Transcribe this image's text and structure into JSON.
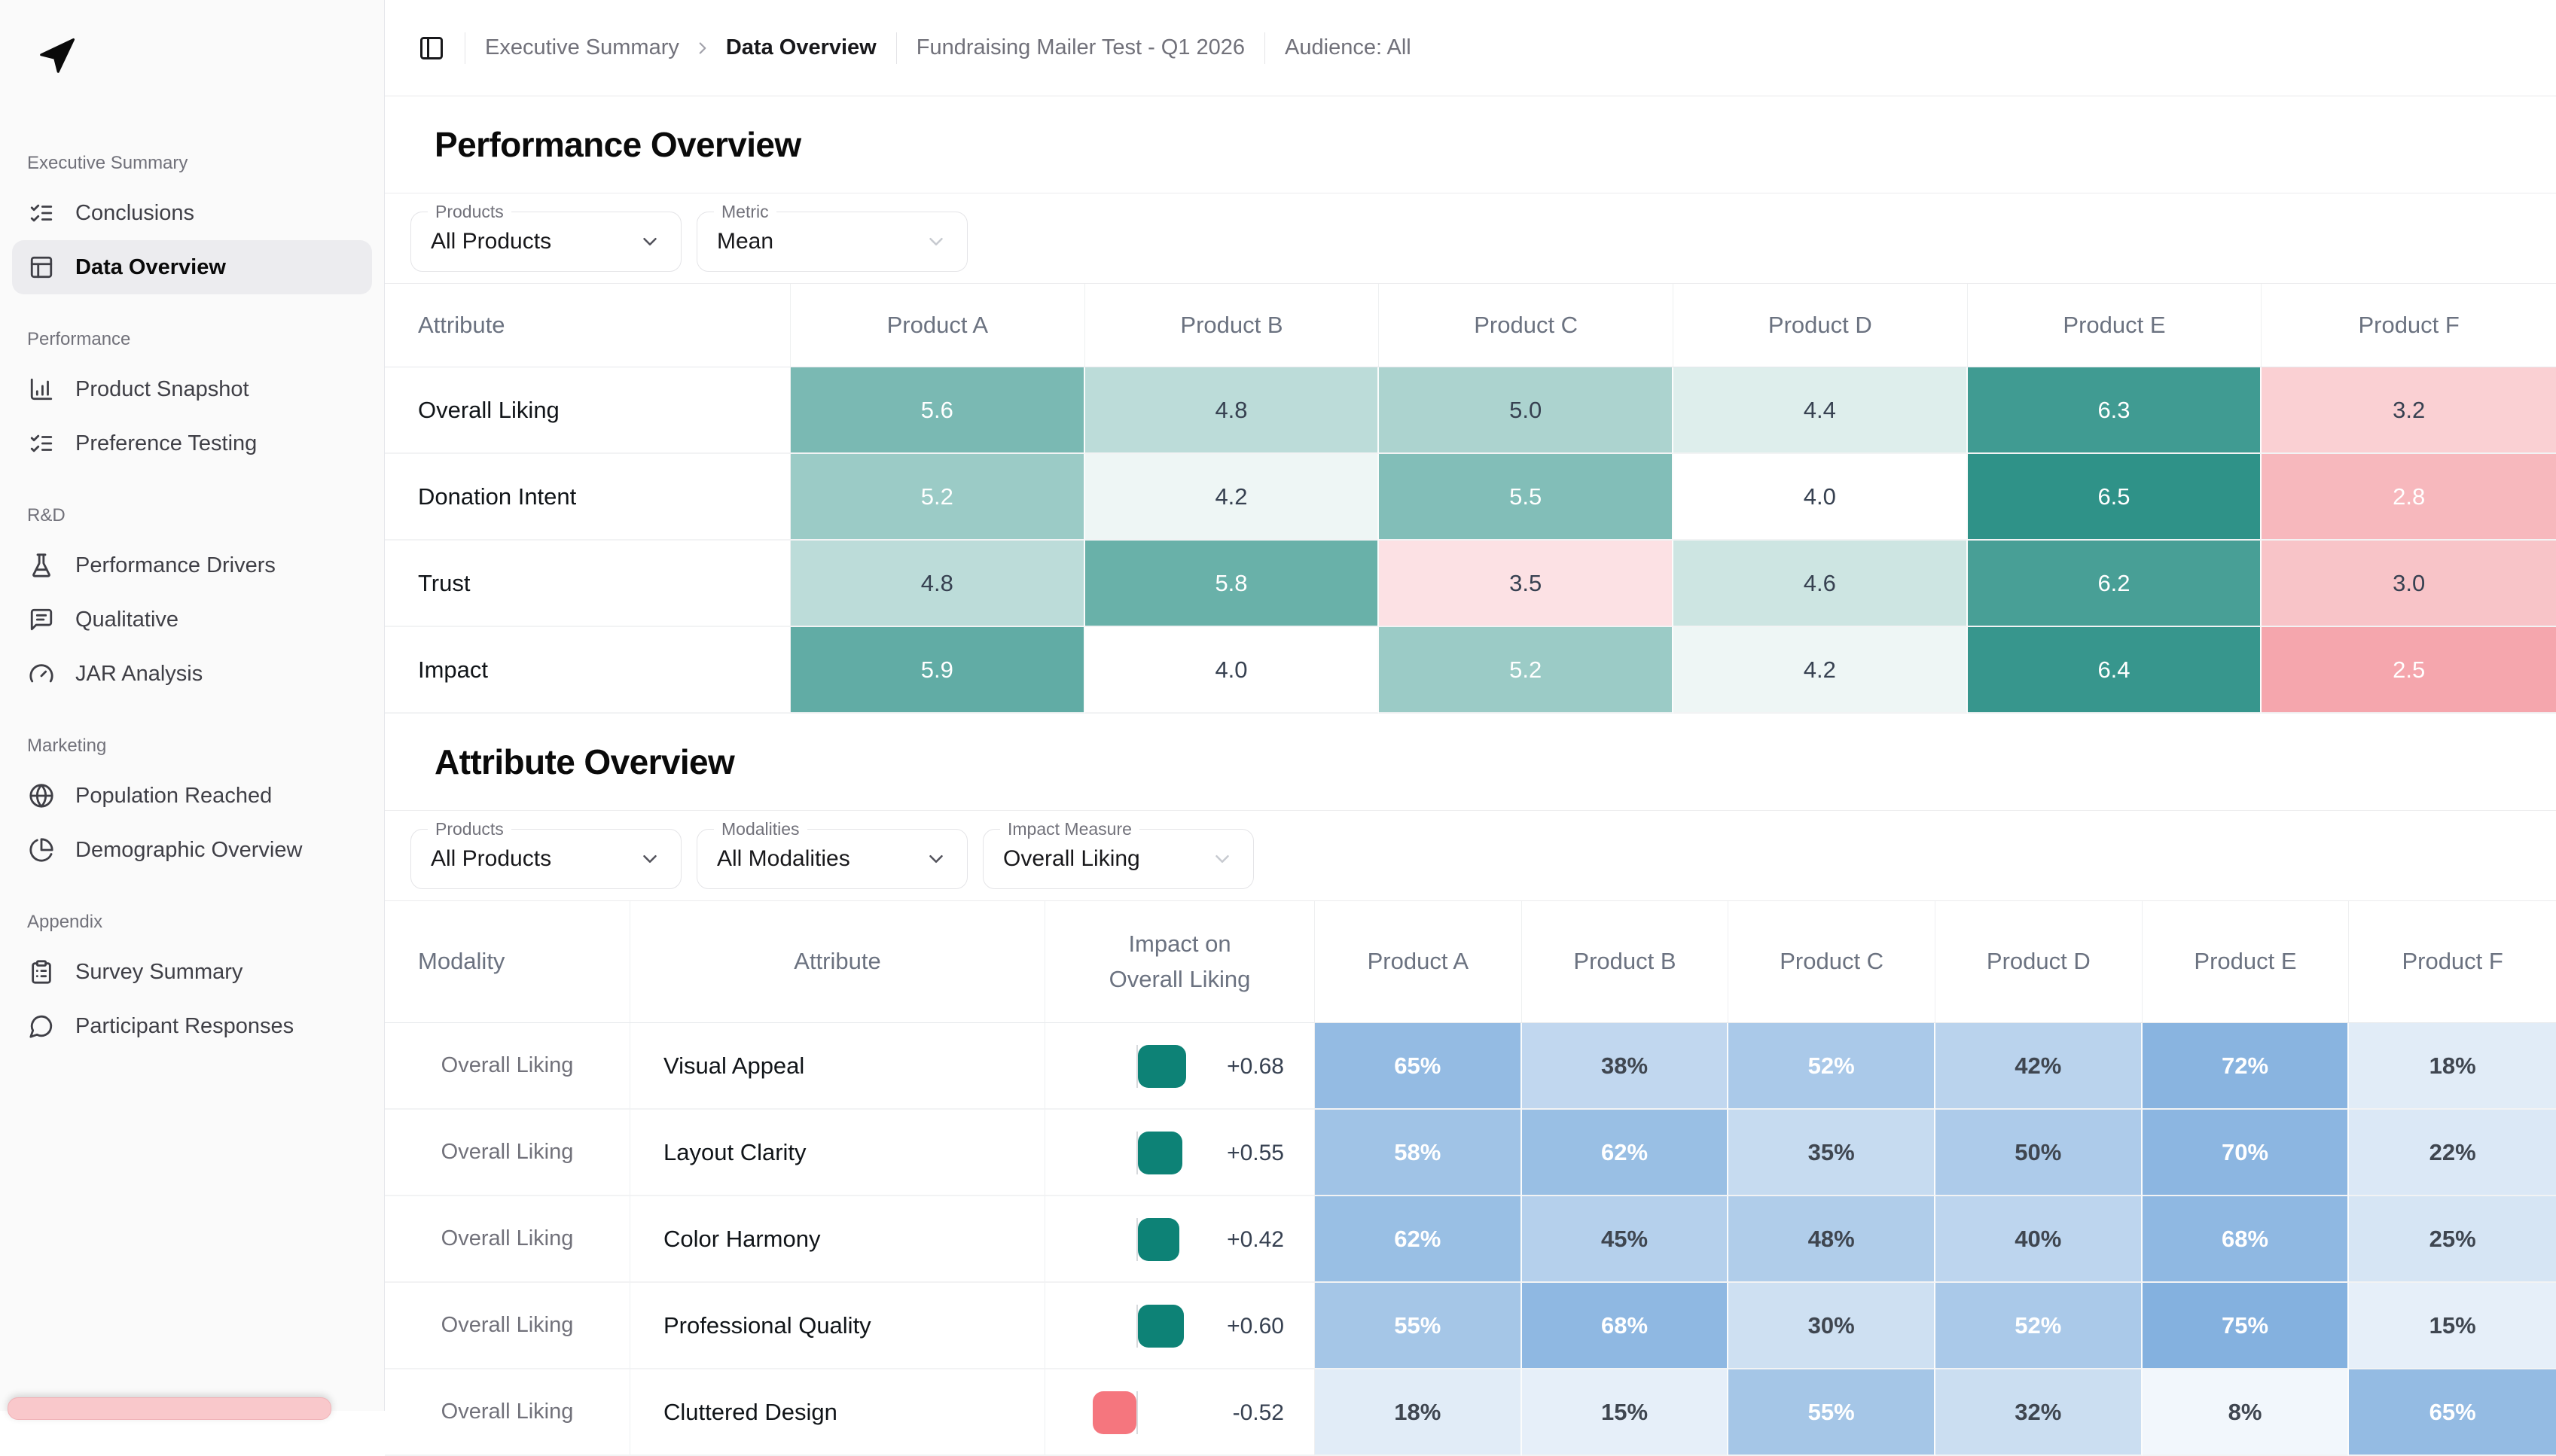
{
  "topbar": {
    "breadcrumb_parent": "Executive Summary",
    "breadcrumb_current": "Data Overview",
    "project": "Fundraising Mailer Test - Q1 2026",
    "audience": "Audience: All"
  },
  "sidebar": {
    "logo_icon": "navigation-arrow-icon",
    "sections": [
      {
        "label": "Executive Summary",
        "items": [
          {
            "label": "Conclusions",
            "icon": "list-checks",
            "active": false
          },
          {
            "label": "Data Overview",
            "icon": "table",
            "active": true
          }
        ]
      },
      {
        "label": "Performance",
        "items": [
          {
            "label": "Product Snapshot",
            "icon": "bar-chart",
            "active": false
          },
          {
            "label": "Preference Testing",
            "icon": "list-checks",
            "active": false
          }
        ]
      },
      {
        "label": "R&D",
        "items": [
          {
            "label": "Performance Drivers",
            "icon": "flask",
            "active": false
          },
          {
            "label": "Qualitative",
            "icon": "message-square",
            "active": false
          },
          {
            "label": "JAR Analysis",
            "icon": "gauge",
            "active": false
          }
        ]
      },
      {
        "label": "Marketing",
        "items": [
          {
            "label": "Population Reached",
            "icon": "globe",
            "active": false
          },
          {
            "label": "Demographic Overview",
            "icon": "pie-chart",
            "active": false
          }
        ]
      },
      {
        "label": "Appendix",
        "items": [
          {
            "label": "Survey Summary",
            "icon": "clipboard-list",
            "active": false
          },
          {
            "label": "Participant Responses",
            "icon": "message-circle",
            "active": false
          }
        ]
      }
    ]
  },
  "performance_overview": {
    "title": "Performance Overview",
    "filters": {
      "products": {
        "label": "Products",
        "value": "All Products",
        "muted_chevron": false
      },
      "metric": {
        "label": "Metric",
        "value": "Mean",
        "muted_chevron": true
      }
    }
  },
  "attribute_overview": {
    "title": "Attribute Overview",
    "filters": {
      "products": {
        "label": "Products",
        "value": "All Products",
        "muted_chevron": false
      },
      "modalities": {
        "label": "Modalities",
        "value": "All Modalities",
        "muted_chevron": false
      },
      "impact_measure": {
        "label": "Impact Measure",
        "value": "Overall Liking",
        "muted_chevron": true
      }
    }
  },
  "performance_table": {
    "type": "heatmap",
    "columns": [
      "Attribute",
      "Product A",
      "Product B",
      "Product C",
      "Product D",
      "Product E",
      "Product F"
    ],
    "rows": [
      {
        "attribute": "Overall Liking",
        "values": [
          5.6,
          4.8,
          5.0,
          4.4,
          6.3,
          3.2
        ]
      },
      {
        "attribute": "Donation Intent",
        "values": [
          5.2,
          4.2,
          5.5,
          4.0,
          6.5,
          2.8
        ]
      },
      {
        "attribute": "Trust",
        "values": [
          4.8,
          5.8,
          3.5,
          4.6,
          6.2,
          3.0
        ]
      },
      {
        "attribute": "Impact",
        "values": [
          5.9,
          4.0,
          5.2,
          4.2,
          6.4,
          2.5
        ]
      }
    ]
  },
  "attribute_table": {
    "type": "heatmap",
    "columns": [
      "Modality",
      "Attribute",
      "Impact on Overall Liking",
      "Product A",
      "Product B",
      "Product C",
      "Product D",
      "Product E",
      "Product F"
    ],
    "rows": [
      {
        "modality": "Overall Liking",
        "attribute": "Visual Appeal",
        "impact": 0.68,
        "values": [
          65,
          38,
          52,
          42,
          72,
          18
        ]
      },
      {
        "modality": "Overall Liking",
        "attribute": "Layout Clarity",
        "impact": 0.55,
        "values": [
          58,
          62,
          35,
          50,
          70,
          22
        ]
      },
      {
        "modality": "Overall Liking",
        "attribute": "Color Harmony",
        "impact": 0.42,
        "values": [
          62,
          45,
          48,
          40,
          68,
          25
        ]
      },
      {
        "modality": "Overall Liking",
        "attribute": "Professional Quality",
        "impact": 0.6,
        "values": [
          55,
          68,
          30,
          52,
          75,
          15
        ]
      },
      {
        "modality": "Overall Liking",
        "attribute": "Cluttered Design",
        "impact": -0.52,
        "values": [
          18,
          15,
          55,
          32,
          8,
          65
        ]
      }
    ]
  },
  "colors": {
    "teal_strong": "#2f9288",
    "pink_strong": "#f5a6ad",
    "blue_strong": "#5b97d4",
    "impact_positive": "#0d8276",
    "impact_negative": "#f5767e",
    "active_item_bg": "#ececef",
    "toast_pink": "#f9c8cb"
  },
  "scales": {
    "mean": {
      "min": 2.5,
      "mid": 4.0,
      "max": 6.5,
      "white_text_above": 5.2,
      "white_text_below": 2.8
    },
    "percent": {
      "min": 0,
      "max": 100,
      "white_text_at": 52
    }
  }
}
